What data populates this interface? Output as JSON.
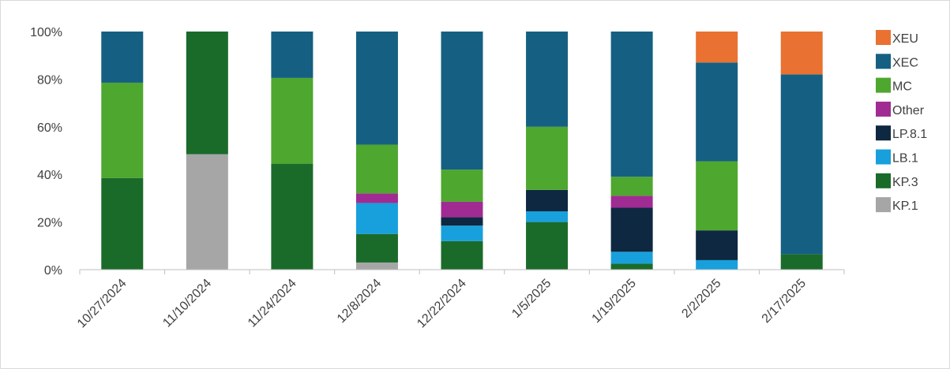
{
  "chart_data": {
    "type": "bar",
    "stacked": true,
    "normalized": true,
    "title": "",
    "xlabel": "",
    "ylabel": "",
    "ylim": [
      0,
      100
    ],
    "y_ticks": [
      "0%",
      "20%",
      "40%",
      "60%",
      "80%",
      "100%"
    ],
    "y_tick_values": [
      0,
      20,
      40,
      60,
      80,
      100
    ],
    "grid": false,
    "legend_position": "right",
    "categories": [
      "10/27/2024",
      "11/10/2024",
      "11/24/2024",
      "12/8/2024",
      "12/22/2024",
      "1/5/2025",
      "1/19/2025",
      "2/2/2025",
      "2/17/2025"
    ],
    "series": [
      {
        "name": "KP.1",
        "color": "#a6a6a6",
        "values": [
          0,
          48.5,
          0,
          3,
          0,
          0,
          0,
          0,
          0
        ]
      },
      {
        "name": "KP.3",
        "color": "#1a6b2a",
        "values": [
          38.5,
          51.5,
          44.5,
          12,
          12,
          20,
          2.5,
          0,
          6.5
        ]
      },
      {
        "name": "LB.1",
        "color": "#18a0dc",
        "values": [
          0,
          0,
          0,
          13,
          6.5,
          4.5,
          5,
          4,
          0
        ]
      },
      {
        "name": "LP.8.1",
        "color": "#0e2841",
        "values": [
          0,
          0,
          0,
          0,
          3.5,
          9,
          18.5,
          12.5,
          0
        ]
      },
      {
        "name": "Other",
        "color": "#a02b93",
        "values": [
          0,
          0,
          0,
          4,
          6.5,
          0,
          5,
          0,
          0
        ]
      },
      {
        "name": "MC",
        "color": "#4ea72e",
        "values": [
          40,
          0,
          36,
          20.5,
          13.5,
          26.5,
          8,
          29,
          0
        ]
      },
      {
        "name": "XEC",
        "color": "#156082",
        "values": [
          21.5,
          0,
          19.5,
          47.5,
          58,
          40,
          61,
          41.5,
          75.5
        ]
      },
      {
        "name": "XEU",
        "color": "#e97132",
        "values": [
          0,
          0,
          0,
          0,
          0,
          0,
          0,
          13,
          18
        ]
      }
    ]
  }
}
